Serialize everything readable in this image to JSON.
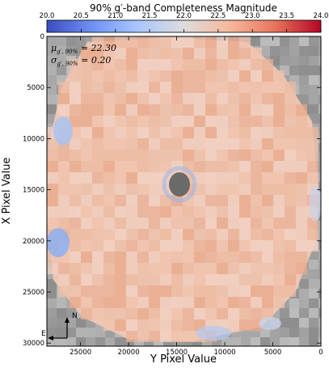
{
  "chart_data": {
    "type": "heatmap",
    "title": "90% g′-band Completeness Magnitude",
    "colorbar": {
      "ticks": [
        "20.0",
        "20.5",
        "21.0",
        "21.5",
        "22.0",
        "22.5",
        "23.0",
        "23.5",
        "24.0"
      ],
      "range": [
        20.0,
        24.0
      ],
      "colormap": "coolwarm",
      "colors": [
        "#3b4cc0",
        "#6f92f3",
        "#aac7fd",
        "#dddcdc",
        "#f7b89c",
        "#e7745b",
        "#b40426"
      ],
      "location": "top"
    },
    "xlabel": "Y Pixel Value",
    "ylabel": "X Pixel Value",
    "x_ticks": [
      "25000",
      "20000",
      "15000",
      "10000",
      "5000",
      "0"
    ],
    "y_ticks": [
      "0",
      "5000",
      "10000",
      "15000",
      "20000",
      "25000",
      "30000"
    ],
    "xlim": [
      28500,
      0
    ],
    "ylim": [
      30300,
      0
    ],
    "annotations": {
      "mu_name": "μ",
      "mu_sub": "g′, 90%",
      "mu_value": " = 22.30",
      "sigma_name": "σ",
      "sigma_sub": "g′, 90%",
      "sigma_value": " = 0.20"
    },
    "compass": {
      "north": "N",
      "east": "E"
    }
  }
}
